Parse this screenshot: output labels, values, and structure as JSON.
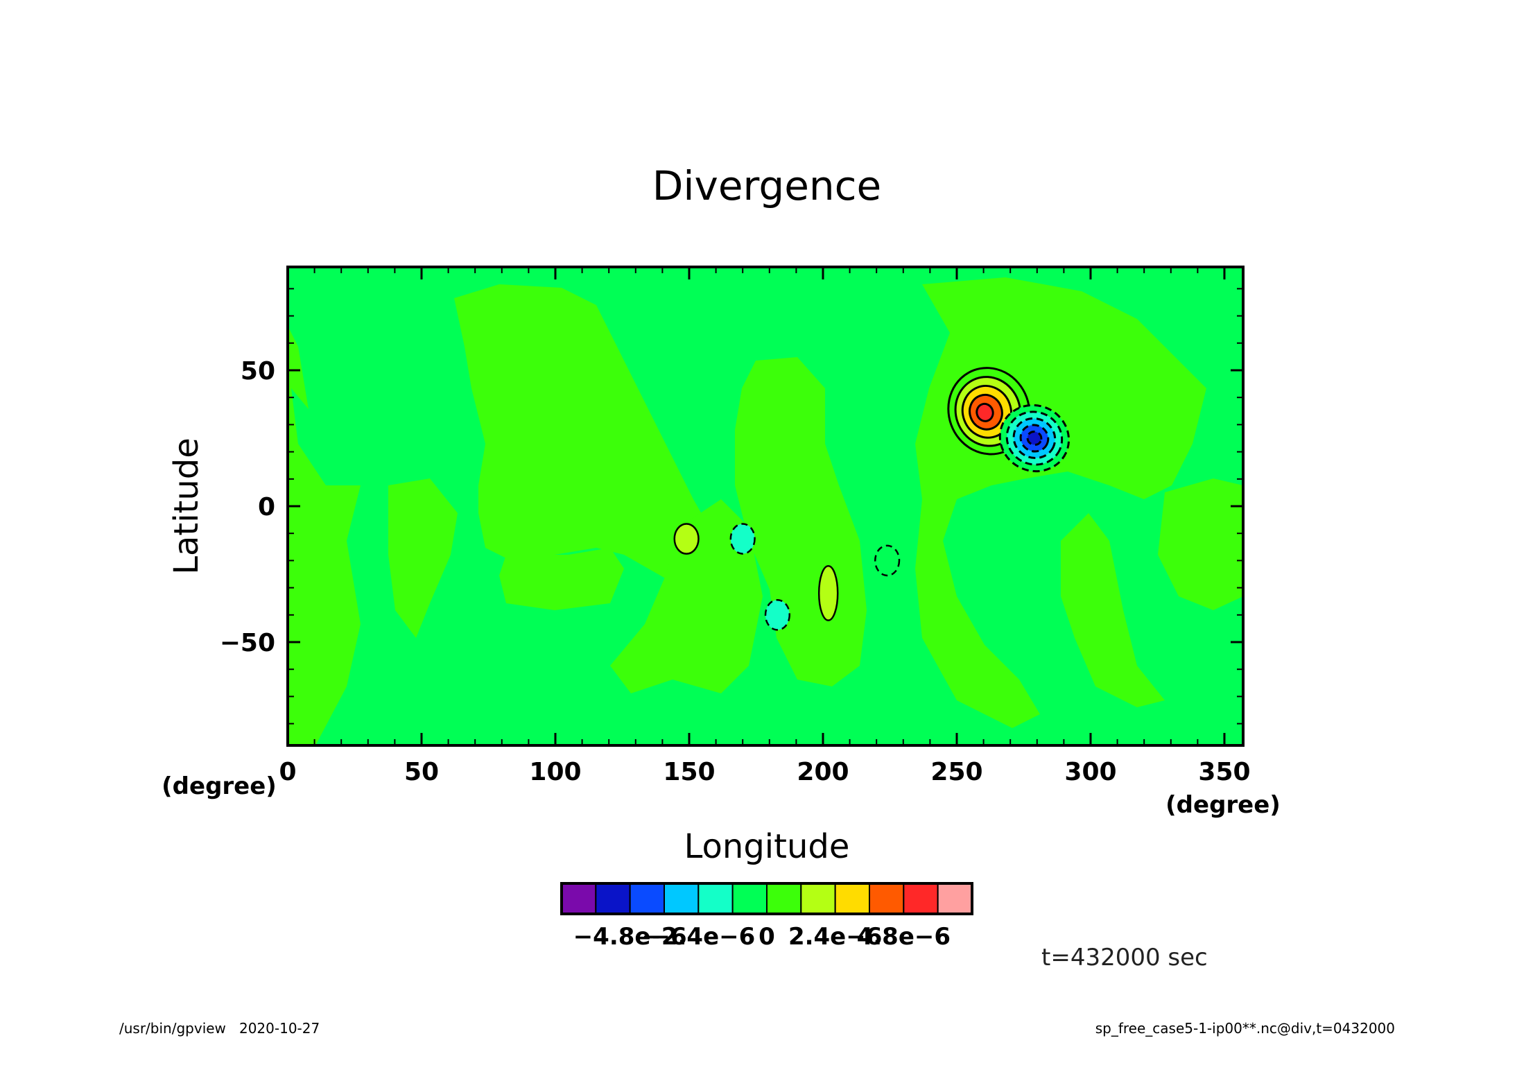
{
  "title": "Divergence",
  "time_label": "t=432000 sec",
  "footer_left": "/usr/bin/gpview   2020-10-27",
  "footer_right": "sp_free_case5-1-ip00**.nc@div,t=0432000",
  "chart_data": {
    "type": "heatmap",
    "title": "Divergence",
    "xlabel": "Longitude",
    "ylabel": "Latitude",
    "x_unit": "(degree)",
    "y_unit": "(degree)",
    "xlim": [
      0,
      357
    ],
    "ylim": [
      -88,
      88
    ],
    "x_ticks": [
      0,
      50,
      100,
      150,
      200,
      250,
      300,
      350
    ],
    "y_ticks": [
      50,
      0,
      -50
    ],
    "x_tick_labels": [
      "0",
      "50",
      "100",
      "150",
      "200",
      "250",
      "300",
      "350"
    ],
    "y_tick_labels": [
      "50",
      "0",
      "−50"
    ],
    "grid": false,
    "colorbar": {
      "levels": [
        -6e-06,
        -4.8e-06,
        -3.6e-06,
        -2.4e-06,
        -1.2e-06,
        0,
        1.2e-06,
        2.4e-06,
        3.6e-06,
        4.8e-06,
        6e-06
      ],
      "colors": [
        "#7a0aab",
        "#0a14c8",
        "#0a4bff",
        "#00c8ff",
        "#14ffc8",
        "#00ff55",
        "#3cff0a",
        "#b4ff14",
        "#ffdc00",
        "#ff5a00",
        "#ff2828",
        "#ffa0a0"
      ],
      "tick_labels": [
        "−4.8e−6",
        "−2.4e−6",
        "0",
        "2.4e−6",
        "4.8e−6"
      ],
      "tick_values": [
        -4.8e-06,
        -2.4e-06,
        0,
        2.4e-06,
        4.8e-06
      ]
    },
    "features": [
      {
        "kind": "positive-max",
        "lon": 262,
        "lat": 35,
        "peak": 5.5e-06
      },
      {
        "kind": "negative-min",
        "lon": 279,
        "lat": 25,
        "peak": -5e-06
      },
      {
        "kind": "positive-cell",
        "lon": 149,
        "lat": -12,
        "peak": 1.8e-06
      },
      {
        "kind": "positive-cell",
        "lon": 202,
        "lat": -32,
        "peak": 1.8e-06
      },
      {
        "kind": "negative-cell",
        "lon": 170,
        "lat": -12,
        "peak": -1.5e-06
      },
      {
        "kind": "negative-cell",
        "lon": 183,
        "lat": -40,
        "peak": -1.5e-06
      },
      {
        "kind": "negative-cell",
        "lon": 224,
        "lat": -20,
        "peak": -1.3e-06
      }
    ]
  }
}
